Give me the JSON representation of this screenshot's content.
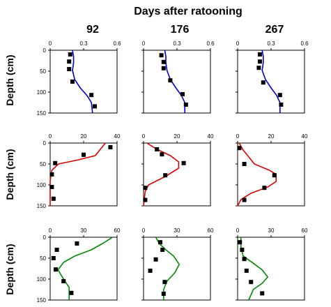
{
  "figure": {
    "title": "Days after ratooning",
    "ylabel": "Depth (cm)",
    "column_titles": [
      "92",
      "176",
      "267"
    ],
    "y_ticks": [
      0,
      50,
      100,
      150
    ],
    "series_colors": [
      "#0000cc",
      "#dd0000",
      "#008800"
    ],
    "marker_color": "#000000"
  },
  "chart_data": [
    {
      "type": "scatter",
      "row": 0,
      "col": 0,
      "xlim": [
        0,
        0.6
      ],
      "ylim": [
        0,
        150
      ],
      "y_inverted": true,
      "x_ticks": [
        "0",
        "0.3",
        "0.6"
      ],
      "x_tick_values": [
        0,
        0.3,
        0.6
      ],
      "points": [
        {
          "x": 0.18,
          "y": 10
        },
        {
          "x": 0.17,
          "y": 27
        },
        {
          "x": 0.17,
          "y": 45
        },
        {
          "x": 0.2,
          "y": 75
        },
        {
          "x": 0.37,
          "y": 107
        },
        {
          "x": 0.4,
          "y": 134
        }
      ],
      "line": [
        {
          "x": 0.2,
          "y": 0
        },
        {
          "x": 0.21,
          "y": 15
        },
        {
          "x": 0.21,
          "y": 30
        },
        {
          "x": 0.2,
          "y": 48
        },
        {
          "x": 0.22,
          "y": 70
        },
        {
          "x": 0.27,
          "y": 90
        },
        {
          "x": 0.33,
          "y": 108
        },
        {
          "x": 0.37,
          "y": 125
        },
        {
          "x": 0.38,
          "y": 150
        }
      ]
    },
    {
      "type": "scatter",
      "row": 0,
      "col": 1,
      "xlim": [
        0,
        0.6
      ],
      "ylim": [
        0,
        150
      ],
      "y_inverted": true,
      "x_ticks": [
        "0",
        "0.3",
        "0.6"
      ],
      "x_tick_values": [
        0,
        0.3,
        0.6
      ],
      "points": [
        {
          "x": 0.16,
          "y": 12
        },
        {
          "x": 0.18,
          "y": 28
        },
        {
          "x": 0.18,
          "y": 43
        },
        {
          "x": 0.24,
          "y": 72
        },
        {
          "x": 0.35,
          "y": 105
        },
        {
          "x": 0.38,
          "y": 130
        }
      ],
      "line": [
        {
          "x": 0.19,
          "y": 0
        },
        {
          "x": 0.2,
          "y": 15
        },
        {
          "x": 0.2,
          "y": 30
        },
        {
          "x": 0.21,
          "y": 48
        },
        {
          "x": 0.24,
          "y": 70
        },
        {
          "x": 0.29,
          "y": 90
        },
        {
          "x": 0.34,
          "y": 108
        },
        {
          "x": 0.37,
          "y": 125
        },
        {
          "x": 0.37,
          "y": 150
        }
      ]
    },
    {
      "type": "scatter",
      "row": 0,
      "col": 2,
      "xlim": [
        0,
        0.6
      ],
      "ylim": [
        0,
        150
      ],
      "y_inverted": true,
      "x_ticks": [
        "0",
        "0.3",
        "0.6"
      ],
      "x_tick_values": [
        0,
        0.3,
        0.6
      ],
      "points": [
        {
          "x": 0.2,
          "y": 10
        },
        {
          "x": 0.2,
          "y": 27
        },
        {
          "x": 0.19,
          "y": 42
        },
        {
          "x": 0.23,
          "y": 77
        },
        {
          "x": 0.38,
          "y": 107
        },
        {
          "x": 0.39,
          "y": 130
        }
      ],
      "line": [
        {
          "x": 0.22,
          "y": 0
        },
        {
          "x": 0.23,
          "y": 15
        },
        {
          "x": 0.23,
          "y": 30
        },
        {
          "x": 0.22,
          "y": 48
        },
        {
          "x": 0.25,
          "y": 70
        },
        {
          "x": 0.3,
          "y": 90
        },
        {
          "x": 0.35,
          "y": 108
        },
        {
          "x": 0.38,
          "y": 125
        },
        {
          "x": 0.38,
          "y": 150
        }
      ]
    },
    {
      "type": "scatter",
      "row": 1,
      "col": 0,
      "xlim": [
        0,
        40
      ],
      "ylim": [
        0,
        150
      ],
      "y_inverted": true,
      "x_ticks": [
        "0",
        "20",
        "40"
      ],
      "x_tick_values": [
        0,
        20,
        40
      ],
      "points": [
        {
          "x": 36,
          "y": 10
        },
        {
          "x": 20,
          "y": 28
        },
        {
          "x": 3,
          "y": 48
        },
        {
          "x": 1,
          "y": 75
        },
        {
          "x": 1,
          "y": 105
        },
        {
          "x": 2,
          "y": 133
        }
      ],
      "line": [
        {
          "x": 33,
          "y": 0
        },
        {
          "x": 30,
          "y": 15
        },
        {
          "x": 27,
          "y": 30
        },
        {
          "x": 17,
          "y": 40
        },
        {
          "x": 5,
          "y": 50
        },
        {
          "x": 1,
          "y": 65
        },
        {
          "x": 0,
          "y": 90
        },
        {
          "x": 0,
          "y": 150
        }
      ]
    },
    {
      "type": "scatter",
      "row": 1,
      "col": 1,
      "xlim": [
        0,
        40
      ],
      "ylim": [
        0,
        150
      ],
      "y_inverted": true,
      "x_ticks": [
        "0",
        "20",
        "40"
      ],
      "x_tick_values": [
        0,
        20,
        40
      ],
      "points": [
        {
          "x": 8,
          "y": 15
        },
        {
          "x": 11,
          "y": 27
        },
        {
          "x": 24,
          "y": 48
        },
        {
          "x": 13,
          "y": 77
        },
        {
          "x": 1,
          "y": 107
        },
        {
          "x": 1,
          "y": 136
        }
      ],
      "line": [
        {
          "x": 2,
          "y": 0
        },
        {
          "x": 8,
          "y": 15
        },
        {
          "x": 16,
          "y": 30
        },
        {
          "x": 21,
          "y": 45
        },
        {
          "x": 21,
          "y": 60
        },
        {
          "x": 13,
          "y": 80
        },
        {
          "x": 3,
          "y": 100
        },
        {
          "x": 1,
          "y": 115
        },
        {
          "x": 0,
          "y": 150
        }
      ]
    },
    {
      "type": "scatter",
      "row": 1,
      "col": 2,
      "xlim": [
        0,
        40
      ],
      "ylim": [
        0,
        150
      ],
      "y_inverted": true,
      "x_ticks": [
        "0",
        "20",
        "40"
      ],
      "x_tick_values": [
        0,
        20,
        40
      ],
      "points": [
        {
          "x": 1,
          "y": 12
        },
        {
          "x": 4,
          "y": 50
        },
        {
          "x": 22,
          "y": 77
        },
        {
          "x": 16,
          "y": 107
        },
        {
          "x": 4,
          "y": 136
        }
      ],
      "line": [
        {
          "x": 1,
          "y": 0
        },
        {
          "x": 3,
          "y": 15
        },
        {
          "x": 6,
          "y": 30
        },
        {
          "x": 10,
          "y": 50
        },
        {
          "x": 19,
          "y": 65
        },
        {
          "x": 23,
          "y": 75
        },
        {
          "x": 23,
          "y": 92
        },
        {
          "x": 18,
          "y": 105
        },
        {
          "x": 8,
          "y": 120
        },
        {
          "x": 2,
          "y": 135
        },
        {
          "x": 0,
          "y": 150
        }
      ]
    },
    {
      "type": "scatter",
      "row": 2,
      "col": 0,
      "xlim": [
        0,
        60
      ],
      "ylim": [
        0,
        150
      ],
      "y_inverted": true,
      "x_ticks": [
        "0",
        "30",
        "60"
      ],
      "x_tick_values": [
        0,
        30,
        60
      ],
      "points": [
        {
          "x": 24,
          "y": 15
        },
        {
          "x": 6,
          "y": 30
        },
        {
          "x": 3,
          "y": 50
        },
        {
          "x": 5,
          "y": 77
        },
        {
          "x": 12,
          "y": 105
        },
        {
          "x": 19,
          "y": 133
        }
      ],
      "line": [
        {
          "x": 56,
          "y": 0
        },
        {
          "x": 47,
          "y": 15
        },
        {
          "x": 37,
          "y": 30
        },
        {
          "x": 22,
          "y": 45
        },
        {
          "x": 12,
          "y": 60
        },
        {
          "x": 7,
          "y": 78
        },
        {
          "x": 12,
          "y": 100
        },
        {
          "x": 17,
          "y": 120
        },
        {
          "x": 17,
          "y": 150
        }
      ]
    },
    {
      "type": "scatter",
      "row": 2,
      "col": 1,
      "xlim": [
        0,
        60
      ],
      "ylim": [
        0,
        150
      ],
      "y_inverted": true,
      "x_ticks": [
        "0",
        "30",
        "60"
      ],
      "x_tick_values": [
        0,
        30,
        60
      ],
      "points": [
        {
          "x": 15,
          "y": 12
        },
        {
          "x": 17,
          "y": 30
        },
        {
          "x": 11,
          "y": 53
        },
        {
          "x": 6,
          "y": 80
        },
        {
          "x": 19,
          "y": 107
        },
        {
          "x": 18,
          "y": 135
        }
      ],
      "line": [
        {
          "x": 11,
          "y": 0
        },
        {
          "x": 14,
          "y": 15
        },
        {
          "x": 20,
          "y": 30
        },
        {
          "x": 27,
          "y": 45
        },
        {
          "x": 32,
          "y": 65
        },
        {
          "x": 28,
          "y": 85
        },
        {
          "x": 21,
          "y": 105
        },
        {
          "x": 18,
          "y": 125
        },
        {
          "x": 18,
          "y": 150
        }
      ]
    },
    {
      "type": "scatter",
      "row": 2,
      "col": 2,
      "xlim": [
        0,
        60
      ],
      "ylim": [
        0,
        150
      ],
      "y_inverted": true,
      "x_ticks": [
        "0",
        "30",
        "60"
      ],
      "x_tick_values": [
        0,
        30,
        60
      ],
      "points": [
        {
          "x": 2,
          "y": 12
        },
        {
          "x": 4,
          "y": 30
        },
        {
          "x": 6,
          "y": 52
        },
        {
          "x": 8,
          "y": 80
        },
        {
          "x": 12,
          "y": 107
        },
        {
          "x": 22,
          "y": 134
        }
      ],
      "line": [
        {
          "x": 3,
          "y": 0
        },
        {
          "x": 3,
          "y": 25
        },
        {
          "x": 5,
          "y": 45
        },
        {
          "x": 14,
          "y": 62
        },
        {
          "x": 22,
          "y": 78
        },
        {
          "x": 27,
          "y": 95
        },
        {
          "x": 22,
          "y": 110
        },
        {
          "x": 14,
          "y": 125
        },
        {
          "x": 10,
          "y": 150
        }
      ]
    }
  ]
}
